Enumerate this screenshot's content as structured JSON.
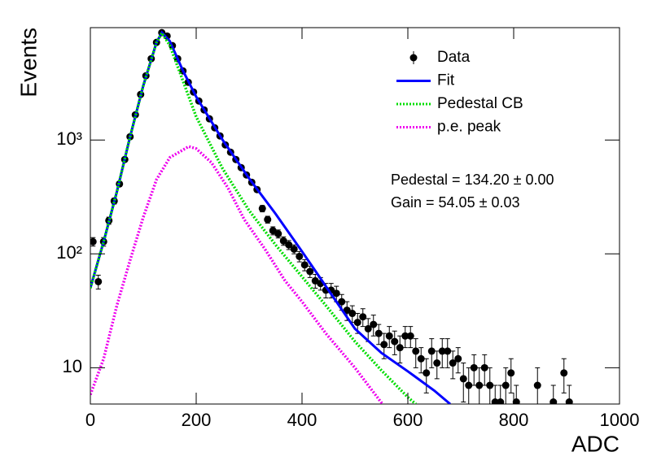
{
  "chart_data": {
    "type": "line",
    "y_label": "Events",
    "x_label": "ADC",
    "log_y": true,
    "xlim": [
      0,
      1000
    ],
    "ylim": [
      4.8,
      9700
    ],
    "xticks": [
      0,
      200,
      400,
      600,
      800,
      1000
    ],
    "yticks": [
      10,
      {
        "value": 100,
        "label": "10²"
      },
      {
        "value": 1000,
        "label": "10³"
      }
    ],
    "annotations": [
      "Pedestal = 134.20 ± 0.00",
      "Gain = 54.05 ± 0.03"
    ],
    "series": [
      {
        "name": "Data",
        "type": "scatter",
        "color": "#000000",
        "x": [
          5,
          15,
          25,
          35,
          45,
          55,
          65,
          75,
          85,
          95,
          105,
          115,
          125,
          135,
          145,
          155,
          165,
          175,
          185,
          195,
          205,
          215,
          225,
          235,
          245,
          255,
          265,
          275,
          285,
          295,
          305,
          315,
          325,
          335,
          345,
          355,
          365,
          375,
          385,
          395,
          405,
          415,
          425,
          435,
          445,
          455,
          465,
          475,
          485,
          495,
          505,
          515,
          525,
          535,
          545,
          555,
          565,
          575,
          585,
          595,
          605,
          615,
          625,
          635,
          645,
          655,
          665,
          675,
          685,
          695,
          705,
          715,
          725,
          735,
          745,
          755,
          765,
          775,
          785,
          795,
          805,
          845,
          875,
          895,
          905
        ],
        "values": [
          128,
          57,
          128,
          196,
          291,
          411,
          674,
          1068,
          1665,
          2512,
          3664,
          5176,
          7197,
          8770,
          8180,
          6740,
          5176,
          4046,
          3214,
          2637,
          2200,
          1837,
          1534,
          1280,
          1086,
          906,
          781,
          674,
          572,
          493,
          425,
          367,
          250,
          200,
          160,
          150,
          130,
          120,
          110,
          95,
          80,
          70,
          58,
          55,
          48,
          48,
          45,
          38,
          32,
          30,
          25,
          28,
          22,
          24,
          20,
          16,
          19,
          17,
          15,
          19,
          19,
          14,
          12,
          9,
          14,
          11,
          14,
          14,
          11,
          12,
          8,
          7,
          10,
          7,
          10,
          7,
          5,
          5,
          7,
          9,
          5,
          7,
          5,
          9,
          5
        ],
        "errors": [
          11,
          8,
          11,
          14,
          17,
          20,
          26,
          33,
          41,
          50,
          61,
          72,
          85,
          94,
          90,
          82,
          72,
          64,
          57,
          51,
          47,
          43,
          39,
          36,
          33,
          30,
          28,
          26,
          24,
          22,
          21,
          19,
          16,
          14,
          13,
          12,
          11,
          11,
          10,
          10,
          9,
          8,
          8,
          7,
          7,
          7,
          7,
          6,
          6,
          5,
          5,
          5,
          5,
          5,
          4,
          4,
          4,
          4,
          4,
          4,
          4,
          4,
          3,
          3,
          4,
          3,
          4,
          4,
          3,
          3,
          3,
          3,
          3,
          3,
          3,
          3,
          2,
          2,
          3,
          3,
          2,
          3,
          2,
          3,
          2
        ]
      },
      {
        "name": "Fit",
        "type": "line",
        "color": "#0000ff",
        "dash": "solid",
        "x": [
          0,
          25,
          50,
          75,
          100,
          125,
          135,
          150,
          175,
          200,
          250,
          300,
          350,
          400,
          450,
          500,
          550,
          600,
          650,
          680
        ],
        "values": [
          50,
          128,
          350,
          1068,
          3000,
          7200,
          8770,
          7400,
          4050,
          2400,
          1000,
          460,
          225,
          105,
          48,
          22,
          13.5,
          9.3,
          6.3,
          4.8
        ]
      },
      {
        "name": "Pedestal CB",
        "type": "line",
        "color": "#00dd00",
        "dash": "dotted",
        "x": [
          0,
          25,
          50,
          75,
          100,
          125,
          135,
          150,
          175,
          200,
          250,
          300,
          350,
          400,
          450,
          500,
          550,
          600,
          615
        ],
        "values": [
          50,
          128,
          350,
          1068,
          3000,
          7200,
          8700,
          6800,
          3300,
          1600,
          560,
          240,
          120,
          63,
          33,
          17,
          9.5,
          5.5,
          4.8
        ]
      },
      {
        "name": "p.e. peak",
        "type": "line",
        "color": "#ee00ee",
        "dash": "dotted",
        "x": [
          0,
          25,
          50,
          75,
          100,
          125,
          150,
          186,
          200,
          229,
          260,
          291,
          330,
          368,
          400,
          445,
          500,
          552
        ],
        "values": [
          5.8,
          12,
          35,
          88,
          210,
          450,
          700,
          877,
          840,
          631,
          380,
          200,
          110,
          58,
          38,
          20,
          10,
          4.8
        ]
      }
    ]
  }
}
